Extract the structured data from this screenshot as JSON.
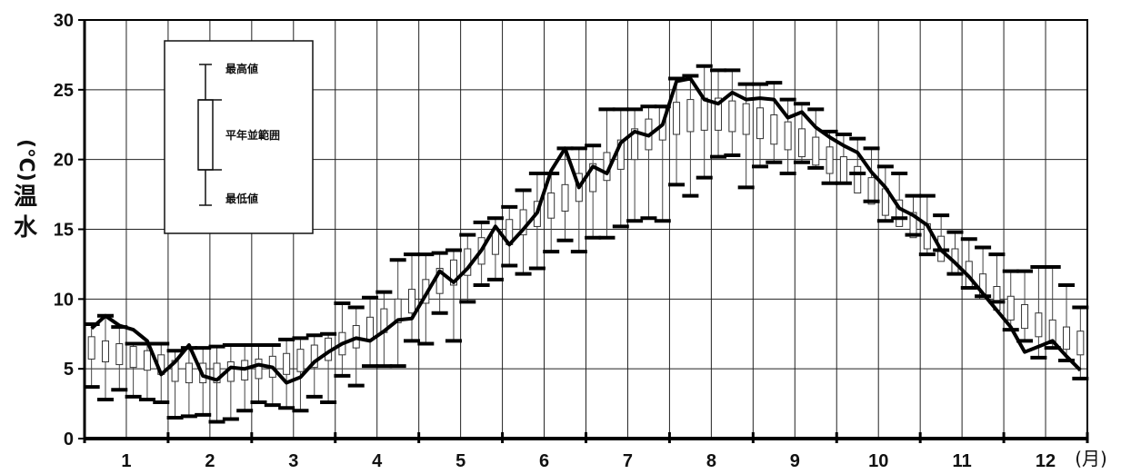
{
  "chart_data": {
    "type": "box-line",
    "ylabel_chars": [
      "水",
      "温"
    ],
    "ylabel_unit": "(℃)",
    "ylim": [
      0,
      30
    ],
    "y_ticks": [
      "0",
      "5",
      "10",
      "15",
      "20",
      "25",
      "30"
    ],
    "x_months": [
      "1",
      "2",
      "3",
      "4",
      "5",
      "6",
      "7",
      "8",
      "9",
      "10",
      "11",
      "12"
    ],
    "x_unit": "(月)",
    "grid": true,
    "legend": {
      "position": "top-left",
      "max_label": "最高値",
      "range_label": "平年並範囲",
      "min_label": "最低値"
    },
    "line_values": [
      7.9,
      8.8,
      8.1,
      7.8,
      7.0,
      4.6,
      5.5,
      6.7,
      4.5,
      4.2,
      5.1,
      5.0,
      5.3,
      5.1,
      4.0,
      4.4,
      5.5,
      6.2,
      6.8,
      7.2,
      7.0,
      7.7,
      8.5,
      8.6,
      10.3,
      12.0,
      11.2,
      12.2,
      13.5,
      15.2,
      13.9,
      15.0,
      16.2,
      19.2,
      20.8,
      18.0,
      19.5,
      19.0,
      21.2,
      22.0,
      21.7,
      22.5,
      25.6,
      25.8,
      24.3,
      24.0,
      24.8,
      24.3,
      24.4,
      24.3,
      23.0,
      23.4,
      22.3,
      21.6,
      21.0,
      20.5,
      19.1,
      18.0,
      16.5,
      16.0,
      15.3,
      13.5,
      12.6,
      11.6,
      10.4,
      9.2,
      8.0,
      6.2,
      6.6,
      7.0,
      5.9,
      4.9
    ],
    "boxes": {
      "q1": [
        5.7,
        5.5,
        5.3,
        5.1,
        4.9,
        4.6,
        4.1,
        4.0,
        4.0,
        4.0,
        4.1,
        4.2,
        4.3,
        4.4,
        4.6,
        4.8,
        5.1,
        5.6,
        6.0,
        6.5,
        7.1,
        7.6,
        8.3,
        9.0,
        9.7,
        10.4,
        11.0,
        11.7,
        12.5,
        13.2,
        13.9,
        14.6,
        15.2,
        15.8,
        16.3,
        17.0,
        17.7,
        18.5,
        19.3,
        20.0,
        20.7,
        21.4,
        21.8,
        22.0,
        22.1,
        22.1,
        22.0,
        21.8,
        21.5,
        21.1,
        20.7,
        20.2,
        19.6,
        19.0,
        18.3,
        17.6,
        16.8,
        16.0,
        15.2,
        14.4,
        13.6,
        12.7,
        11.8,
        10.9,
        10.0,
        9.2,
        8.5,
        7.9,
        7.3,
        6.8,
        6.4,
        6.0
      ],
      "q3": [
        7.3,
        7.0,
        6.8,
        6.6,
        6.3,
        6.0,
        5.6,
        5.4,
        5.4,
        5.4,
        5.5,
        5.6,
        5.7,
        5.9,
        6.1,
        6.4,
        6.7,
        7.2,
        7.6,
        8.1,
        8.7,
        9.3,
        10.0,
        10.7,
        11.4,
        12.2,
        12.8,
        13.6,
        14.4,
        15.0,
        15.7,
        16.4,
        17.0,
        17.6,
        18.2,
        19.0,
        19.7,
        20.5,
        21.4,
        22.2,
        22.9,
        23.7,
        24.1,
        24.3,
        24.4,
        24.4,
        24.2,
        24.0,
        23.7,
        23.2,
        22.7,
        22.2,
        21.6,
        20.9,
        20.2,
        19.5,
        18.7,
        17.9,
        17.1,
        16.2,
        15.4,
        14.5,
        13.6,
        12.7,
        11.8,
        10.9,
        10.2,
        9.6,
        9.0,
        8.5,
        8.0,
        7.7
      ],
      "min": [
        3.7,
        2.8,
        3.5,
        3.0,
        2.8,
        2.6,
        1.5,
        1.6,
        1.7,
        1.2,
        1.4,
        2.0,
        2.6,
        2.4,
        2.2,
        2.0,
        3.0,
        2.6,
        4.5,
        3.8,
        5.2,
        5.2,
        5.2,
        7.0,
        6.8,
        9.0,
        7.0,
        9.8,
        11.0,
        11.4,
        12.4,
        11.8,
        12.2,
        13.4,
        14.2,
        13.4,
        14.4,
        14.4,
        15.2,
        15.6,
        15.8,
        15.6,
        18.2,
        17.4,
        18.7,
        20.2,
        20.3,
        18.0,
        19.5,
        19.8,
        19.0,
        19.8,
        19.4,
        18.3,
        18.3,
        19.0,
        17.0,
        15.6,
        15.8,
        14.6,
        13.2,
        13.5,
        11.8,
        10.8,
        10.2,
        9.8,
        7.8,
        7.0,
        5.8,
        6.5,
        5.6,
        4.3
      ],
      "max": [
        8.2,
        8.8,
        8.0,
        6.8,
        6.8,
        6.8,
        6.3,
        6.5,
        6.5,
        6.6,
        6.7,
        6.7,
        6.7,
        6.7,
        7.1,
        7.2,
        7.4,
        7.5,
        9.7,
        9.4,
        10.1,
        10.5,
        12.8,
        13.2,
        13.2,
        13.3,
        13.5,
        14.6,
        15.5,
        15.8,
        16.6,
        17.8,
        19.0,
        19.0,
        20.8,
        20.8,
        21.0,
        23.6,
        23.6,
        23.6,
        23.8,
        23.8,
        25.8,
        26.0,
        26.7,
        26.4,
        26.4,
        25.4,
        25.4,
        25.5,
        24.3,
        24.0,
        23.6,
        22.0,
        21.8,
        21.5,
        20.8,
        19.5,
        19.0,
        17.4,
        17.4,
        16.0,
        14.8,
        14.3,
        13.7,
        13.2,
        12.0,
        12.0,
        12.3,
        12.3,
        11.0,
        9.4
      ]
    }
  }
}
